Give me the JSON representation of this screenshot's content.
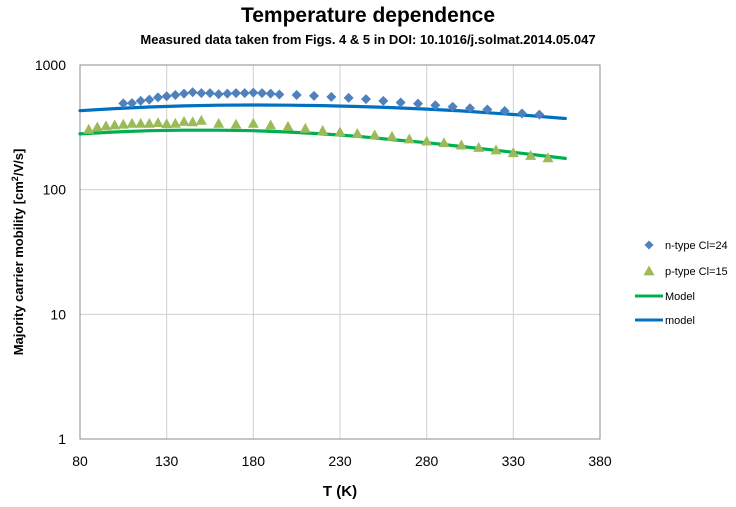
{
  "chart_data": {
    "type": "scatter",
    "title": "Temperature dependence",
    "subtitle": "Measured data taken from Figs. 4 & 5 in DOI: 10.1016/j.solmat.2014.05.047",
    "xlabel": "T (K)",
    "ylabel_main": "Majority carrier mobility [cm",
    "ylabel_sup": "2",
    "ylabel_tail": "/V/s]",
    "xlim": [
      80,
      380
    ],
    "ylim": [
      1,
      1000
    ],
    "yscale": "log",
    "grid": true,
    "legend_position": "right",
    "xticks": [
      80,
      130,
      180,
      230,
      280,
      330,
      380
    ],
    "xtick_labels": [
      "80",
      "130",
      "180",
      "230",
      "280",
      "330",
      "380"
    ],
    "yticks": [
      1,
      10,
      100,
      1000
    ],
    "ytick_labels": [
      "1",
      "10",
      "100",
      "1000"
    ],
    "series": [
      {
        "name": "n-type Cl=24",
        "kind": "scatter",
        "marker": "diamond",
        "color": "#4F81BD",
        "x": [
          105,
          110,
          115,
          120,
          125,
          130,
          135,
          140,
          145,
          150,
          155,
          160,
          165,
          170,
          175,
          180,
          185,
          190,
          195,
          205,
          215,
          225,
          235,
          245,
          255,
          265,
          275,
          285,
          295,
          305,
          315,
          325,
          335,
          345
        ],
        "y": [
          492,
          495,
          515,
          528,
          550,
          562,
          575,
          590,
          605,
          595,
          595,
          582,
          590,
          595,
          595,
          600,
          595,
          590,
          580,
          575,
          565,
          555,
          545,
          532,
          515,
          500,
          490,
          475,
          462,
          450,
          440,
          428,
          408,
          400
        ]
      },
      {
        "name": "p-type Cl=15",
        "kind": "scatter",
        "marker": "triangle",
        "color": "#9BBB59",
        "x": [
          85,
          90,
          95,
          100,
          105,
          110,
          115,
          120,
          125,
          130,
          135,
          140,
          145,
          150,
          160,
          170,
          180,
          190,
          200,
          210,
          220,
          230,
          240,
          250,
          260,
          270,
          280,
          290,
          300,
          310,
          320,
          330,
          340,
          350
        ],
        "y": [
          305,
          318,
          325,
          330,
          335,
          340,
          340,
          340,
          345,
          338,
          340,
          352,
          350,
          360,
          340,
          335,
          340,
          330,
          322,
          310,
          298,
          290,
          282,
          275,
          268,
          255,
          245,
          238,
          228,
          218,
          208,
          198,
          188,
          180
        ]
      },
      {
        "name": "Model",
        "kind": "line",
        "color": "#00B050",
        "x": [
          80,
          100,
          120,
          140,
          160,
          180,
          200,
          220,
          240,
          260,
          280,
          300,
          320,
          340,
          360
        ],
        "y": [
          280,
          290,
          297,
          300,
          300,
          297,
          290,
          280,
          268,
          252,
          238,
          222,
          207,
          192,
          178
        ]
      },
      {
        "name": "model",
        "kind": "line",
        "color": "#0070C0",
        "x": [
          80,
          100,
          120,
          140,
          160,
          180,
          200,
          220,
          240,
          260,
          280,
          300,
          320,
          340,
          360
        ],
        "y": [
          430,
          447,
          460,
          470,
          476,
          478,
          476,
          472,
          465,
          455,
          443,
          428,
          410,
          392,
          372
        ]
      }
    ]
  }
}
